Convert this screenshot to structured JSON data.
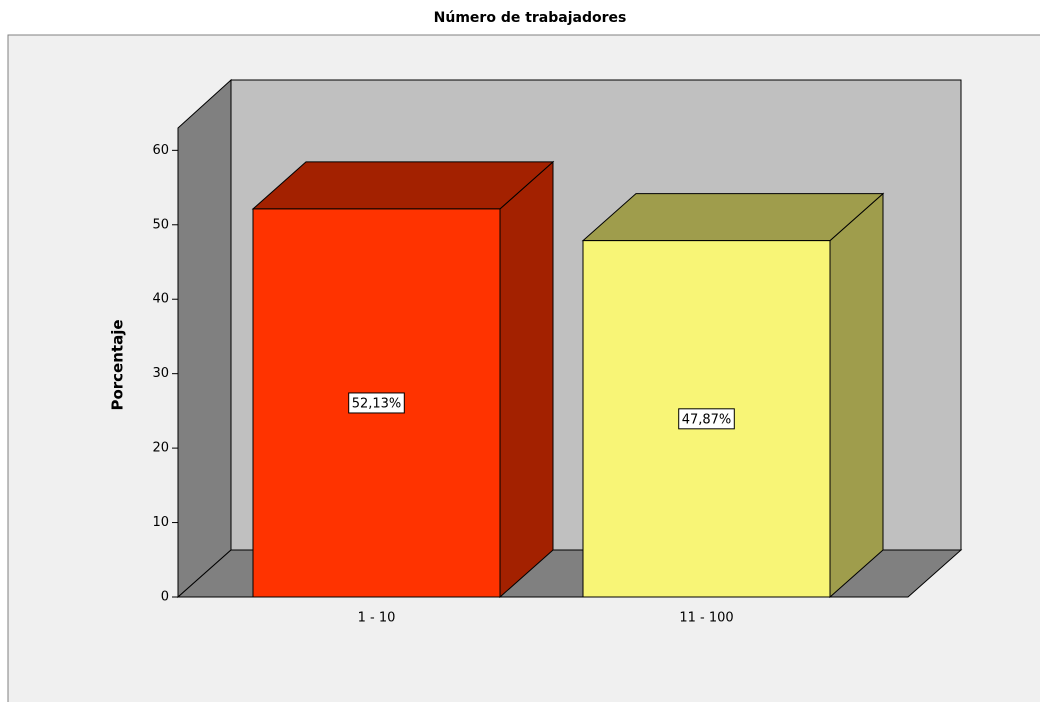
{
  "chart_data": {
    "type": "bar",
    "title": "Número de trabajadores",
    "ylabel": "Porcentaje",
    "categories": [
      "1 - 10",
      "11 - 100"
    ],
    "values": [
      52.13,
      47.87
    ],
    "value_labels": [
      "52,13%",
      "47,87%"
    ],
    "colors": [
      "#ff3300",
      "#f8f576"
    ],
    "ylim": [
      0,
      63
    ],
    "yticks": [
      0,
      10,
      20,
      30,
      40,
      50,
      60
    ]
  }
}
